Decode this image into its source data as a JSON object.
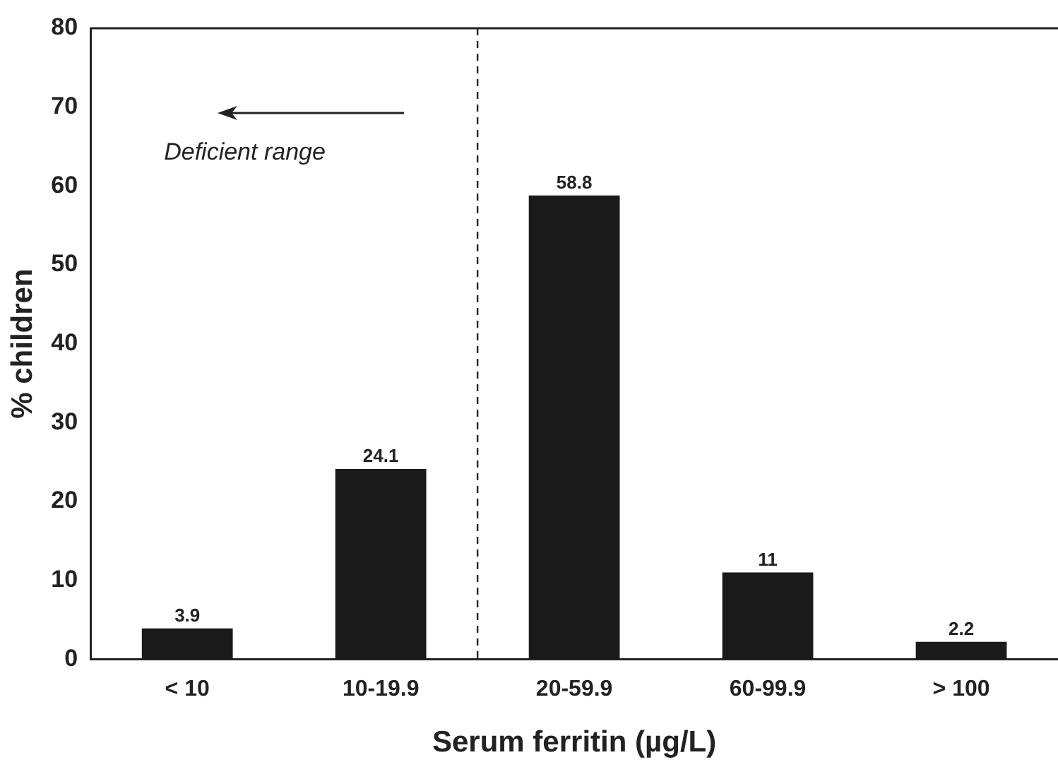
{
  "chart_data": {
    "type": "bar",
    "xlabel": "Serum ferritin (µg/L)",
    "ylabel": "% children",
    "categories": [
      "< 10",
      "10-19.9",
      "20-59.9",
      "60-99.9",
      "> 100"
    ],
    "values": [
      3.9,
      24.1,
      58.8,
      11,
      2.2
    ],
    "color": "#1a1a1a",
    "ylim": [
      0,
      80
    ],
    "yticks": [
      0,
      10,
      20,
      30,
      40,
      50,
      60,
      70,
      80
    ],
    "grid": false,
    "legend": false,
    "data_labels": true,
    "annotations": [
      "Deficient range"
    ]
  }
}
